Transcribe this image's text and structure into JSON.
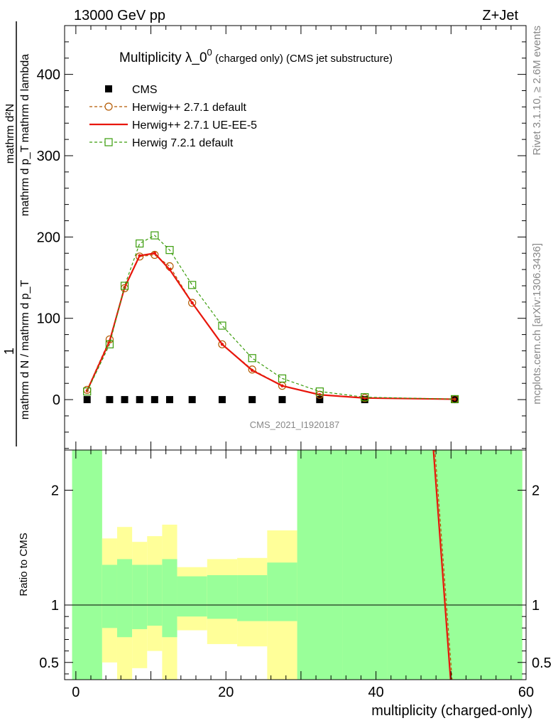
{
  "header": {
    "left": "13000 GeV pp",
    "right": "Z+Jet"
  },
  "side_texts": {
    "rivet": "Rivet 3.1.10, ≥ 2.6M events",
    "mcplots": "mcplots.cern.ch [arXiv:1306.3436]"
  },
  "chart_data": [
    {
      "type": "line",
      "title": "Multiplicity λ_0^0 (charged only) (CMS jet substructure)",
      "title_main": "Multiplicity λ_0",
      "title_sup": "0",
      "title_small": " (charged only) (CMS jet substructure)",
      "watermark": "CMS_2021_I1920187",
      "xlabel": "multiplicity (charged-only)",
      "ylabel": {
        "frac_num": "1",
        "frac_den": "mathrm d N / mathrm d p_T",
        "frac2_num": "mathrm d²N",
        "frac2_den": "mathrm d p_T mathrm d lambda"
      },
      "xlim": [
        -1.5,
        60
      ],
      "ylim": [
        -62,
        460
      ],
      "xticks": [
        0,
        20,
        40,
        60
      ],
      "yticks": [
        0,
        100,
        200,
        300,
        400
      ],
      "legend_position": "top-left",
      "series": [
        {
          "name": "CMS",
          "style": "black-squares",
          "color": "#000000",
          "x": [
            1.5,
            4.5,
            6.5,
            8.5,
            10.5,
            12.5,
            15.5,
            19.5,
            23.5,
            27.5,
            32.5,
            38.5,
            50.5
          ],
          "y": [
            0,
            0,
            0,
            0,
            0,
            0,
            0,
            0,
            0,
            0,
            0,
            0,
            0
          ]
        },
        {
          "name": "Herwig++ 2.7.1 default",
          "style": "dashed-circles",
          "color": "#b35900",
          "x": [
            1.5,
            4.5,
            6.5,
            8.5,
            10.5,
            12.5,
            15.5,
            19.5,
            23.5,
            27.5,
            32.5,
            38.5,
            50.5
          ],
          "y": [
            12,
            74,
            137,
            176,
            178,
            164,
            119,
            68,
            37,
            17,
            6,
            2,
            0.5
          ]
        },
        {
          "name": "Herwig++ 2.7.1 UE-EE-5",
          "style": "solid",
          "color": "#e8160c",
          "x": [
            1.5,
            4.5,
            6.5,
            8.5,
            10.5,
            12.5,
            15.5,
            19.5,
            23.5,
            27.5,
            32.5,
            38.5,
            50.5
          ],
          "y": [
            11,
            72,
            138,
            177,
            180,
            160,
            119,
            68,
            36,
            17,
            6,
            2,
            0.5
          ]
        },
        {
          "name": "Herwig 7.2.1 default",
          "style": "dashed-squares",
          "color": "#3a9c0a",
          "x": [
            1.5,
            4.5,
            6.5,
            8.5,
            10.5,
            12.5,
            15.5,
            19.5,
            23.5,
            27.5,
            32.5,
            38.5,
            50.5
          ],
          "y": [
            10,
            68,
            140,
            192,
            202,
            184,
            141,
            91,
            51,
            26,
            10,
            3,
            0.6
          ]
        }
      ]
    },
    {
      "type": "line",
      "ylabel": "Ratio to CMS",
      "xlabel": "multiplicity (charged-only)",
      "xlim": [
        -1.5,
        60
      ],
      "ylim": [
        0.35,
        2.35
      ],
      "xticks": [
        0,
        20,
        40,
        60
      ],
      "yticks": [
        0.5,
        1,
        2
      ],
      "ytick_labels": [
        "0.5",
        "1",
        "2"
      ],
      "uncertainty_bands": {
        "bins": [
          [
            -0.5,
            3.5
          ],
          [
            3.5,
            5.5
          ],
          [
            5.5,
            7.5
          ],
          [
            7.5,
            9.5
          ],
          [
            9.5,
            11.5
          ],
          [
            11.5,
            13.5
          ],
          [
            13.5,
            17.5
          ],
          [
            17.5,
            21.5
          ],
          [
            21.5,
            25.5
          ],
          [
            25.5,
            29.5
          ],
          [
            29.5,
            35.5
          ],
          [
            35.5,
            41.5
          ],
          [
            41.5,
            59.5
          ]
        ],
        "green_low": [
          0.3,
          0.8,
          0.72,
          0.79,
          0.82,
          0.72,
          0.9,
          0.88,
          0.86,
          0.86,
          0.3,
          0.3,
          0.3
        ],
        "green_high": [
          2.4,
          1.35,
          1.4,
          1.35,
          1.35,
          1.4,
          1.25,
          1.26,
          1.26,
          1.37,
          2.4,
          2.4,
          2.4
        ],
        "yellow_low": [
          0.3,
          0.5,
          0.3,
          0.45,
          0.6,
          0.3,
          0.78,
          0.66,
          0.64,
          0.3,
          0.3,
          0.3,
          0.3
        ],
        "yellow_high": [
          2.4,
          1.58,
          1.68,
          1.55,
          1.6,
          1.7,
          1.33,
          1.4,
          1.41,
          1.65,
          2.4,
          2.4,
          2.4
        ]
      },
      "series": [
        {
          "name": "Herwig++ 2.7.1 default",
          "style": "dashed",
          "color": "#b35900",
          "x": [
            47.8,
            50.2
          ],
          "y": [
            2.4,
            0.3
          ]
        },
        {
          "name": "Herwig++ 2.7.1 UE-EE-5",
          "style": "solid",
          "color": "#e8160c",
          "x": [
            47.6,
            50.0
          ],
          "y": [
            2.4,
            0.3
          ]
        }
      ]
    }
  ]
}
